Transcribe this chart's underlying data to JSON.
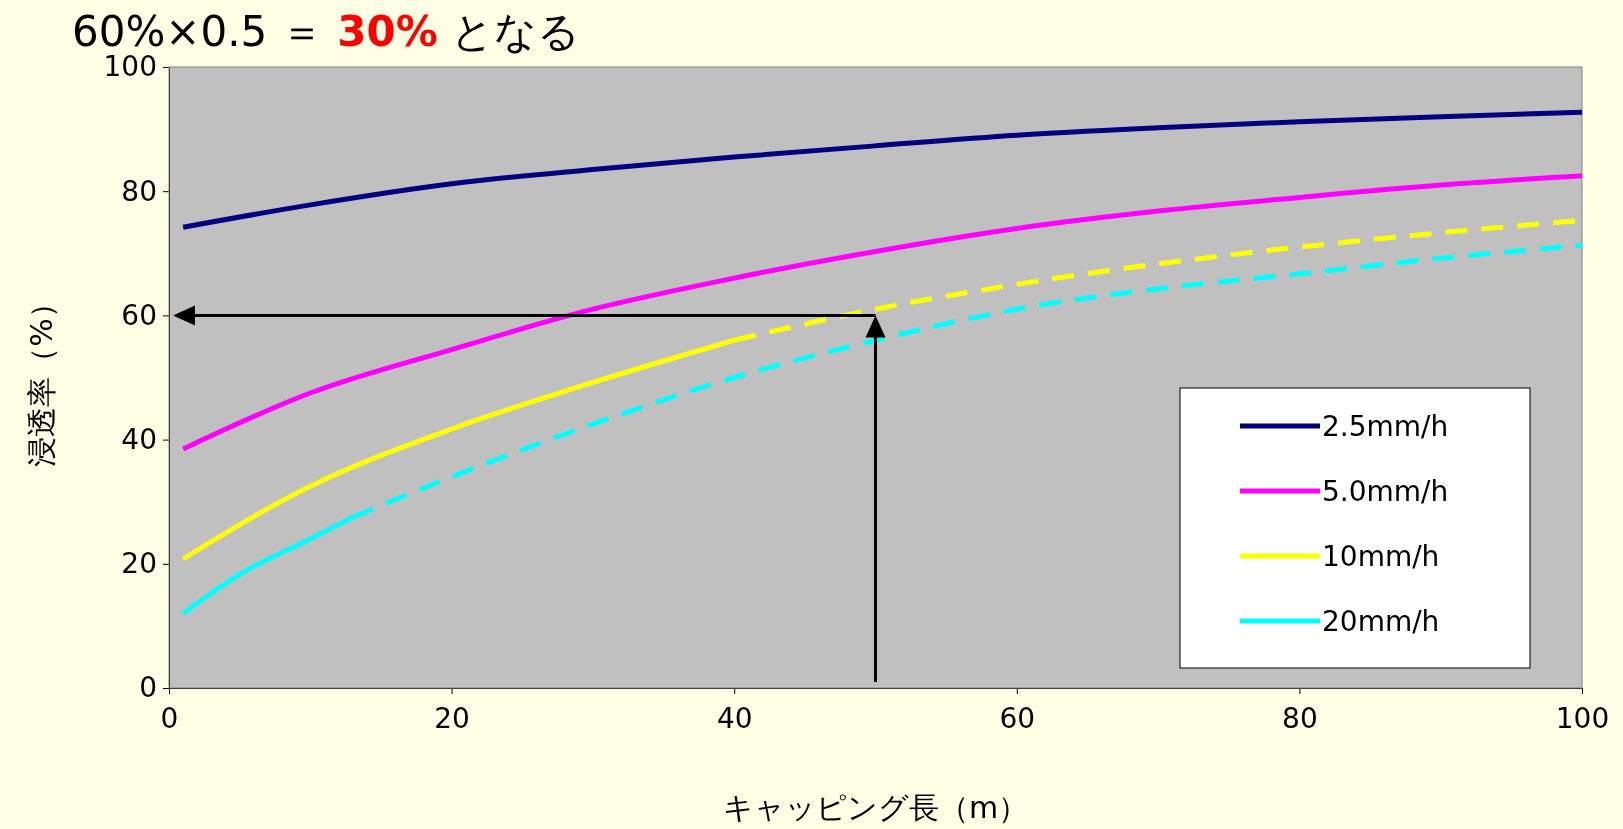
{
  "chart_data": {
    "type": "line",
    "title": "60%×0.5 ＝ 30% となる",
    "xlabel": "キャッピング長（m）",
    "ylabel": "浸透率（%）",
    "xlim": [
      0,
      100
    ],
    "ylim": [
      0,
      100
    ],
    "xticks": [
      0,
      20,
      40,
      60,
      80,
      100
    ],
    "yticks": [
      0,
      20,
      40,
      60,
      80,
      100
    ],
    "grid": false,
    "legend": "bottom right",
    "marker": "none",
    "series": [
      {
        "name": "2.5mm/h",
        "color": "#000080",
        "line_style": "solid",
        "x": [
          1,
          10,
          20,
          30,
          40,
          50,
          60,
          70,
          80,
          90,
          100
        ],
        "values": [
          74.2,
          77.8,
          81.2,
          83.5,
          85.5,
          87.3,
          89,
          90.2,
          91.2,
          92,
          92.7
        ]
      },
      {
        "name": "5.0mm/h",
        "color": "#ff00ff",
        "line_style": "solid",
        "x": [
          1,
          10,
          20,
          30,
          40,
          50,
          60,
          70,
          80,
          90,
          100
        ],
        "values": [
          38.5,
          47.5,
          54.5,
          61,
          66,
          70.3,
          74,
          76.8,
          79,
          81,
          82.5
        ]
      },
      {
        "name": "10mm/h",
        "color": "#ffff00",
        "line_style": "solid",
        "x": [
          1,
          10,
          20,
          30,
          40
        ],
        "values": [
          20.8,
          32.5,
          41.7,
          49.2,
          56
        ]
      },
      {
        "color": "#ffff00",
        "line_style": "dashed",
        "x": [
          40,
          50,
          60,
          70,
          80,
          90,
          100
        ],
        "values": [
          56,
          61,
          65,
          68.3,
          71,
          73.3,
          75.3
        ]
      },
      {
        "name": "20mm/h",
        "color": "#00ffff",
        "line_style": "solid",
        "x": [
          1,
          5,
          10,
          13
        ],
        "values": [
          12,
          18.3,
          24,
          27.5
        ]
      },
      {
        "color": "#00ffff",
        "line_style": "dashed",
        "x": [
          13,
          20,
          30,
          40,
          50,
          60,
          70,
          80,
          90,
          100
        ],
        "values": [
          27.5,
          34,
          42.5,
          50,
          56,
          61,
          64.3,
          66.7,
          69.2,
          71.3
        ]
      }
    ],
    "ref_lines": [
      {
        "axis": "x",
        "value": 50,
        "color": "#000000"
      },
      {
        "axis": "y",
        "value": 60,
        "color": "#000000"
      }
    ]
  }
}
